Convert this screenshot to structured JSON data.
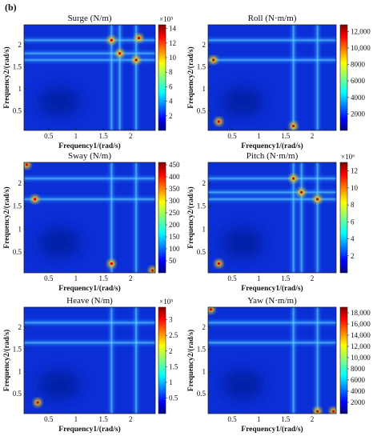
{
  "figure_label": "(b)",
  "chart_data": [
    {
      "type": "heatmap",
      "title": "Surge (N/m)",
      "xlabel": "Frequency1/(rad/s)",
      "ylabel": "Frequency2/(rad/s)",
      "xlim": [
        0.05,
        2.45
      ],
      "ylim": [
        0.05,
        2.45
      ],
      "x_ticks": [
        "0.5",
        "1",
        "1.5",
        "2"
      ],
      "x_tick_values": [
        0.5,
        1,
        1.5,
        2
      ],
      "y_ticks": [
        "0.5",
        "1",
        "1.5",
        "2"
      ],
      "y_tick_values": [
        0.5,
        1,
        1.5,
        2
      ],
      "colorbar_range": [
        0,
        14.5
      ],
      "colorbar_ticks": [
        "2",
        "4",
        "6",
        "8",
        "10",
        "12",
        "14"
      ],
      "colorbar_tick_values": [
        2,
        4,
        6,
        8,
        10,
        12,
        14
      ],
      "colorbar_exponent": "×10⁵",
      "peak_points": [
        [
          1.65,
          2.1
        ],
        [
          2.1,
          1.65
        ],
        [
          1.8,
          1.8
        ],
        [
          2.15,
          2.15
        ]
      ],
      "resonance_lines": [
        1.65,
        1.8,
        2.1
      ],
      "colormap": "jet"
    },
    {
      "type": "heatmap",
      "title": "Roll (N·m/m)",
      "xlabel": "Frequency1/(rad/s)",
      "ylabel": "Frequency2/(rad/s)",
      "xlim": [
        0.05,
        2.45
      ],
      "ylim": [
        0.05,
        2.45
      ],
      "x_ticks": [
        "0.5",
        "1",
        "1.5",
        "2"
      ],
      "x_tick_values": [
        0.5,
        1,
        1.5,
        2
      ],
      "y_ticks": [
        "0.5",
        "1",
        "1.5",
        "2"
      ],
      "y_tick_values": [
        0.5,
        1,
        1.5,
        2
      ],
      "colorbar_range": [
        0,
        12800
      ],
      "colorbar_ticks": [
        "2000",
        "4000",
        "6000",
        "8000",
        "10,000",
        "12,000"
      ],
      "colorbar_tick_values": [
        2000,
        4000,
        6000,
        8000,
        10000,
        12000
      ],
      "colorbar_exponent": "",
      "peak_points": [
        [
          0.25,
          0.25
        ],
        [
          1.65,
          0.15
        ],
        [
          0.15,
          1.65
        ]
      ],
      "resonance_lines": [
        1.65,
        2.1
      ],
      "colormap": "jet"
    },
    {
      "type": "heatmap",
      "title": "Sway (N/m)",
      "xlabel": "Frequency1/(rad/s)",
      "ylabel": "Frequency2/(rad/s)",
      "xlim": [
        0.05,
        2.45
      ],
      "ylim": [
        0.05,
        2.45
      ],
      "x_ticks": [
        "0.5",
        "1",
        "1.5",
        "2"
      ],
      "x_tick_values": [
        0.5,
        1,
        1.5,
        2
      ],
      "y_ticks": [
        "0.5",
        "1",
        "1.5",
        "2"
      ],
      "y_tick_values": [
        0.5,
        1,
        1.5,
        2
      ],
      "colorbar_range": [
        0,
        460
      ],
      "colorbar_ticks": [
        "50",
        "100",
        "150",
        "200",
        "250",
        "300",
        "350",
        "400",
        "450"
      ],
      "colorbar_tick_values": [
        50,
        100,
        150,
        200,
        250,
        300,
        350,
        400,
        450
      ],
      "colorbar_exponent": "",
      "peak_points": [
        [
          0.1,
          2.4
        ],
        [
          2.4,
          0.1
        ],
        [
          0.25,
          1.65
        ],
        [
          1.65,
          0.25
        ]
      ],
      "resonance_lines": [
        1.65,
        2.1
      ],
      "colormap": "jet"
    },
    {
      "type": "heatmap",
      "title": "Pitch (N·m/m)",
      "xlabel": "Frequency1/(rad/s)",
      "ylabel": "Frequency2/(rad/s)",
      "xlim": [
        0.05,
        2.45
      ],
      "ylim": [
        0.05,
        2.45
      ],
      "x_ticks": [
        "0.5",
        "1",
        "1.5",
        "2"
      ],
      "x_tick_values": [
        0.5,
        1,
        1.5,
        2
      ],
      "y_ticks": [
        "0.5",
        "1",
        "1.5",
        "2"
      ],
      "y_tick_values": [
        0.5,
        1,
        1.5,
        2
      ],
      "colorbar_range": [
        0,
        13
      ],
      "colorbar_ticks": [
        "2",
        "4",
        "6",
        "8",
        "10",
        "12"
      ],
      "colorbar_tick_values": [
        2,
        4,
        6,
        8,
        10,
        12
      ],
      "colorbar_exponent": "×10⁶",
      "peak_points": [
        [
          0.25,
          0.25
        ],
        [
          1.65,
          2.1
        ],
        [
          2.1,
          1.65
        ],
        [
          1.8,
          1.8
        ]
      ],
      "resonance_lines": [
        1.65,
        1.8,
        2.1
      ],
      "colormap": "jet"
    },
    {
      "type": "heatmap",
      "title": "Heave (N/m)",
      "xlabel": "Frequency1/(rad/s)",
      "ylabel": "Frequency2/(rad/s)",
      "xlim": [
        0.05,
        2.45
      ],
      "ylim": [
        0.05,
        2.45
      ],
      "x_ticks": [
        "0.5",
        "1",
        "1.5",
        "2"
      ],
      "x_tick_values": [
        0.5,
        1,
        1.5,
        2
      ],
      "y_ticks": [
        "0.5",
        "1",
        "1.5",
        "2"
      ],
      "y_tick_values": [
        0.5,
        1,
        1.5,
        2
      ],
      "colorbar_range": [
        0,
        3.4
      ],
      "colorbar_ticks": [
        "0.5",
        "1",
        "1.5",
        "2",
        "2.5",
        "3"
      ],
      "colorbar_tick_values": [
        0.5,
        1,
        1.5,
        2,
        2.5,
        3
      ],
      "colorbar_exponent": "×10⁵",
      "peak_points": [
        [
          0.3,
          0.3
        ]
      ],
      "resonance_lines": [
        1.65,
        2.1
      ],
      "colormap": "jet"
    },
    {
      "type": "heatmap",
      "title": "Yaw (N·m/m)",
      "xlabel": "Frequency1/(rad/s)",
      "ylabel": "Frequency2/(rad/s)",
      "xlim": [
        0.05,
        2.45
      ],
      "ylim": [
        0.05,
        2.45
      ],
      "x_ticks": [
        "0.5",
        "1",
        "1.5",
        "2"
      ],
      "x_tick_values": [
        0.5,
        1,
        1.5,
        2
      ],
      "y_ticks": [
        "0.5",
        "1",
        "1.5",
        "2"
      ],
      "y_tick_values": [
        0.5,
        1,
        1.5,
        2
      ],
      "colorbar_range": [
        0,
        19000
      ],
      "colorbar_ticks": [
        "2000",
        "4000",
        "6000",
        "8000",
        "10,000",
        "12,000",
        "14,000",
        "16,000",
        "18,000"
      ],
      "colorbar_tick_values": [
        2000,
        4000,
        6000,
        8000,
        10000,
        12000,
        14000,
        16000,
        18000
      ],
      "colorbar_exponent": "",
      "peak_points": [
        [
          0.1,
          2.4
        ],
        [
          2.4,
          0.1
        ],
        [
          2.1,
          0.1
        ]
      ],
      "resonance_lines": [
        1.65,
        2.1
      ],
      "colormap": "jet"
    }
  ]
}
